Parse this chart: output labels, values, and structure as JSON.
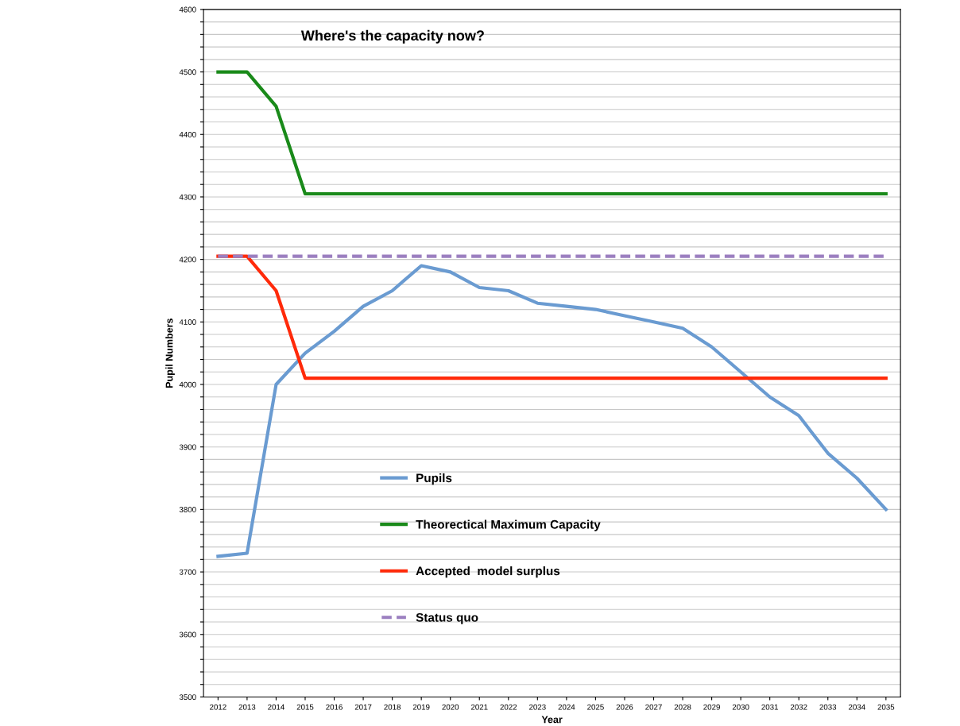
{
  "chart_data": {
    "type": "line",
    "title": "Where's the capacity now?",
    "xlabel": "Year",
    "ylabel": "Pupil Numbers",
    "categories": [
      "2012",
      "2013",
      "2014",
      "2015",
      "2016",
      "2017",
      "2018",
      "2019",
      "2020",
      "2021",
      "2022",
      "2023",
      "2024",
      "2025",
      "2026",
      "2027",
      "2028",
      "2029",
      "2030",
      "2031",
      "2032",
      "2033",
      "2034",
      "2035"
    ],
    "series": [
      {
        "name": "Pupils",
        "color": "#6a9bd1",
        "values": [
          3725,
          3730,
          4000,
          4050,
          4085,
          4125,
          4150,
          4190,
          4180,
          4155,
          4150,
          4130,
          4125,
          4120,
          4110,
          4100,
          4090,
          4060,
          4020,
          3980,
          3950,
          3890,
          3850,
          3800
        ]
      },
      {
        "name": "Theorectical Maximum Capacity",
        "color": "#1a8a1a",
        "values": [
          4500,
          4500,
          4445,
          4305,
          4305,
          4305,
          4305,
          4305,
          4305,
          4305,
          4305,
          4305,
          4305,
          4305,
          4305,
          4305,
          4305,
          4305,
          4305,
          4305,
          4305,
          4305,
          4305,
          4305
        ]
      },
      {
        "name": "Accepted  model surplus",
        "color": "#ff2a0a",
        "values": [
          4205,
          4205,
          4150,
          4010,
          4010,
          4010,
          4010,
          4010,
          4010,
          4010,
          4010,
          4010,
          4010,
          4010,
          4010,
          4010,
          4010,
          4010,
          4010,
          4010,
          4010,
          4010,
          4010,
          4010
        ]
      },
      {
        "name": "Status quo",
        "color": "#9b7fc0",
        "line_style": "dashed",
        "values": [
          4205,
          4205,
          4205,
          4205,
          4205,
          4205,
          4205,
          4205,
          4205,
          4205,
          4205,
          4205,
          4205,
          4205,
          4205,
          4205,
          4205,
          4205,
          4205,
          4205,
          4205,
          4205,
          4205,
          4205
        ]
      }
    ],
    "ylim": [
      3500,
      4600
    ],
    "yticks": [
      3500,
      {
        "value": 3520,
        "label": null
      },
      {
        "value": 3540,
        "label": null
      },
      {
        "value": 3560,
        "label": null
      },
      {
        "value": 3580,
        "label": null
      },
      3600,
      {
        "value": 3620,
        "label": null
      },
      {
        "value": 3640,
        "label": null
      },
      {
        "value": 3660,
        "label": null
      },
      {
        "value": 3680,
        "label": null
      },
      3700,
      {
        "value": 3720,
        "label": null
      },
      {
        "value": 3740,
        "label": null
      },
      {
        "value": 3760,
        "label": null
      },
      {
        "value": 3780,
        "label": null
      },
      3800,
      {
        "value": 3820,
        "label": null
      },
      {
        "value": 3840,
        "label": null
      },
      {
        "value": 3860,
        "label": null
      },
      {
        "value": 3880,
        "label": null
      },
      3900,
      {
        "value": 3920,
        "label": null
      },
      {
        "value": 3940,
        "label": null
      },
      {
        "value": 3960,
        "label": null
      },
      {
        "value": 3980,
        "label": null
      },
      4000,
      {
        "value": 4020,
        "label": null
      },
      {
        "value": 4040,
        "label": null
      },
      {
        "value": 4060,
        "label": null
      },
      {
        "value": 4080,
        "label": null
      },
      4100,
      {
        "value": 4120,
        "label": null
      },
      {
        "value": 4140,
        "label": null
      },
      {
        "value": 4160,
        "label": null
      },
      {
        "value": 4180,
        "label": null
      },
      4200,
      {
        "value": 4220,
        "label": null
      },
      {
        "value": 4240,
        "label": null
      },
      {
        "value": 4260,
        "label": null
      },
      {
        "value": 4280,
        "label": null
      },
      4300,
      {
        "value": 4320,
        "label": null
      },
      {
        "value": 4340,
        "label": null
      },
      {
        "value": 4360,
        "label": null
      },
      {
        "value": 4380,
        "label": null
      },
      4400,
      {
        "value": 4420,
        "label": null
      },
      {
        "value": 4440,
        "label": null
      },
      {
        "value": 4460,
        "label": null
      },
      {
        "value": 4480,
        "label": null
      },
      4500,
      {
        "value": 4520,
        "label": null
      },
      {
        "value": 4540,
        "label": null
      },
      {
        "value": 4560,
        "label": null
      },
      {
        "value": 4580,
        "label": null
      },
      4600
    ],
    "grid": "y",
    "legend": "bottom",
    "marker": "none",
    "line_style": "solid"
  }
}
